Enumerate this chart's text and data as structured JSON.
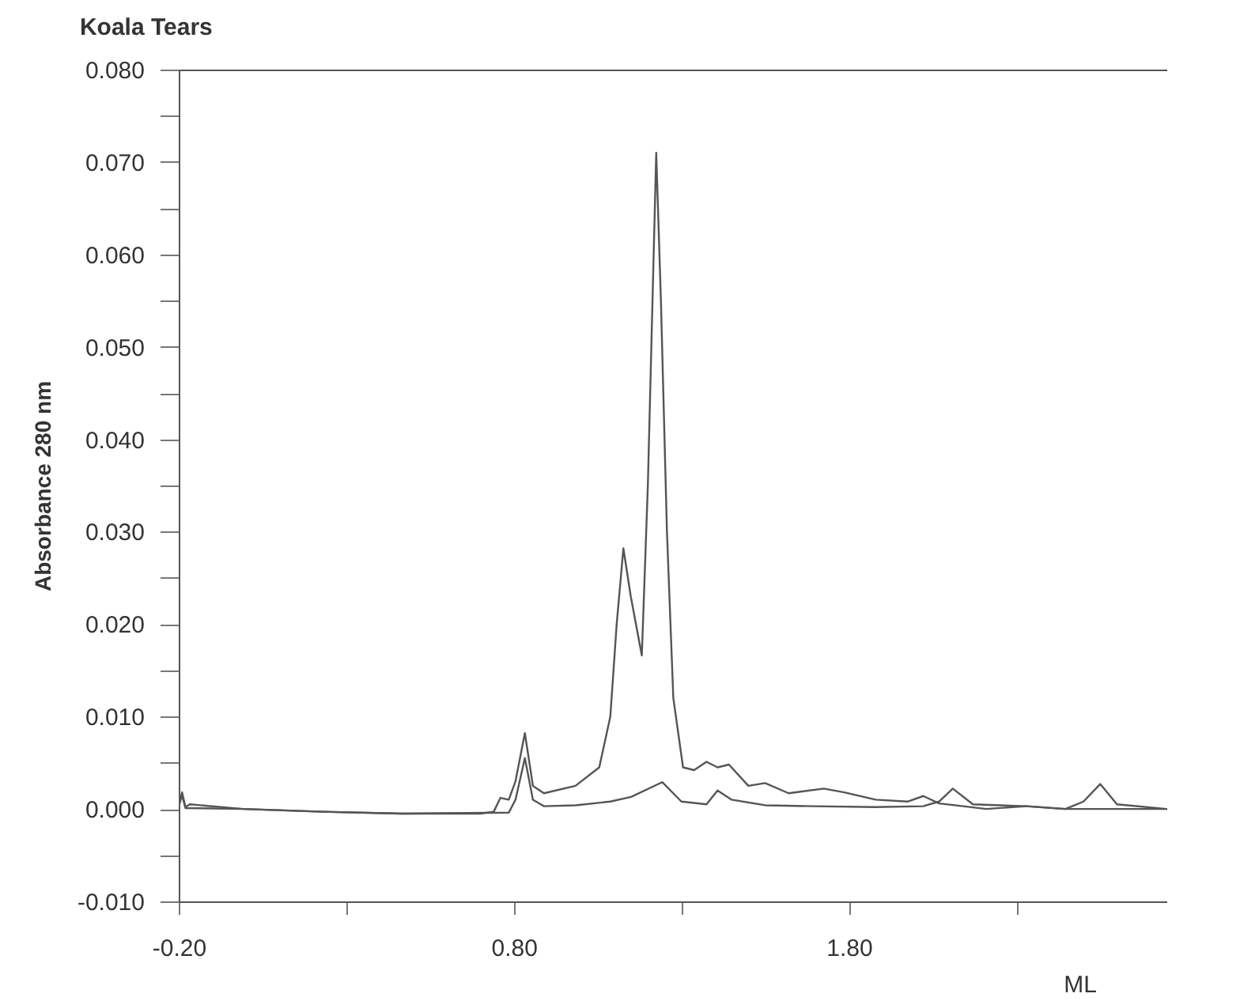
{
  "chart_data": {
    "type": "line",
    "title": "Koala Tears",
    "xlabel": "ML",
    "ylabel": "Absorbance  280  nm",
    "xlim": [
      -0.2,
      2.75
    ],
    "ylim": [
      -0.01,
      0.08
    ],
    "xticks": [
      {
        "value": -0.2,
        "label": "-0.20"
      },
      {
        "value": 0.3,
        "label": null
      },
      {
        "value": 0.8,
        "label": "0.80"
      },
      {
        "value": 1.3,
        "label": null
      },
      {
        "value": 1.8,
        "label": "1.80"
      },
      {
        "value": 2.3,
        "label": null
      }
    ],
    "yticks": [
      {
        "value": -0.01,
        "label": "-0.010"
      },
      {
        "value": -0.005,
        "label": null
      },
      {
        "value": 0,
        "label": "0.000"
      },
      {
        "value": 0.005,
        "label": null
      },
      {
        "value": 0.01,
        "label": "0.010"
      },
      {
        "value": 0.015,
        "label": null
      },
      {
        "value": 0.02,
        "label": "0.020"
      },
      {
        "value": 0.025,
        "label": null
      },
      {
        "value": 0.03,
        "label": "0.030"
      },
      {
        "value": 0.035,
        "label": null
      },
      {
        "value": 0.04,
        "label": "0.040"
      },
      {
        "value": 0.045,
        "label": null
      },
      {
        "value": 0.05,
        "label": "0.050"
      },
      {
        "value": 0.055,
        "label": null
      },
      {
        "value": 0.06,
        "label": "0.060"
      },
      {
        "value": 0.065,
        "label": null
      },
      {
        "value": 0.07,
        "label": "0.070"
      },
      {
        "value": 0.075,
        "label": null
      },
      {
        "value": 0.08,
        "label": "0.080"
      }
    ],
    "grid": false,
    "legend": false,
    "marker": "none",
    "line_style": "solid",
    "series": [
      {
        "color": "#555555",
        "x": [
          -0.2,
          -0.19,
          -0.18,
          -0.167,
          -0.007,
          0.23,
          0.465,
          0.7,
          0.74,
          0.76,
          0.785,
          0.805,
          0.833,
          0.857,
          0.89,
          0.984,
          1.055,
          1.088,
          1.107,
          1.127,
          1.149,
          1.182,
          1.2,
          1.225,
          1.239,
          1.257,
          1.276,
          1.305,
          1.338,
          1.375,
          1.408,
          1.442,
          1.5,
          1.55,
          1.62,
          1.725,
          1.786,
          1.88,
          1.975,
          2.022,
          2.069,
          2.14,
          2.21,
          2.33,
          2.446,
          2.55,
          2.748
        ],
        "values": [
          0.0003,
          0.0018,
          0.0002,
          0.0005,
          0.0,
          -0.0003,
          -0.0005,
          -0.0005,
          -0.0003,
          0.0012,
          0.001,
          0.003,
          0.0082,
          0.0025,
          0.0017,
          0.0025,
          0.0045,
          0.01,
          0.02,
          0.0282,
          0.023,
          0.0166,
          0.035,
          0.071,
          0.055,
          0.03,
          0.012,
          0.0045,
          0.0042,
          0.0051,
          0.0045,
          0.0048,
          0.0025,
          0.0028,
          0.0017,
          0.0022,
          0.0018,
          0.001,
          0.0008,
          0.0014,
          0.0006,
          0.0003,
          0.0,
          0.0003,
          0.0,
          0.0,
          0.0
        ]
      },
      {
        "color": "#555555",
        "x": [
          -0.2,
          -0.19,
          -0.18,
          -0.007,
          0.23,
          0.465,
          0.785,
          0.805,
          0.833,
          0.857,
          0.89,
          0.984,
          1.088,
          1.15,
          1.243,
          1.3,
          1.375,
          1.408,
          1.45,
          1.55,
          1.69,
          1.88,
          2.022,
          2.069,
          2.11,
          2.17,
          2.33,
          2.446,
          2.5,
          2.55,
          2.6,
          2.748
        ],
        "values": [
          0.0003,
          0.0015,
          0.0001,
          0.0,
          -0.0003,
          -0.0005,
          -0.0004,
          0.001,
          0.0055,
          0.001,
          0.0003,
          0.0004,
          0.0008,
          0.0013,
          0.0029,
          0.0008,
          0.0005,
          0.002,
          0.001,
          0.0004,
          0.0003,
          0.0002,
          0.0003,
          0.0008,
          0.0022,
          0.0005,
          0.0003,
          0.0,
          0.0008,
          0.0027,
          0.0005,
          0.0
        ]
      }
    ]
  }
}
